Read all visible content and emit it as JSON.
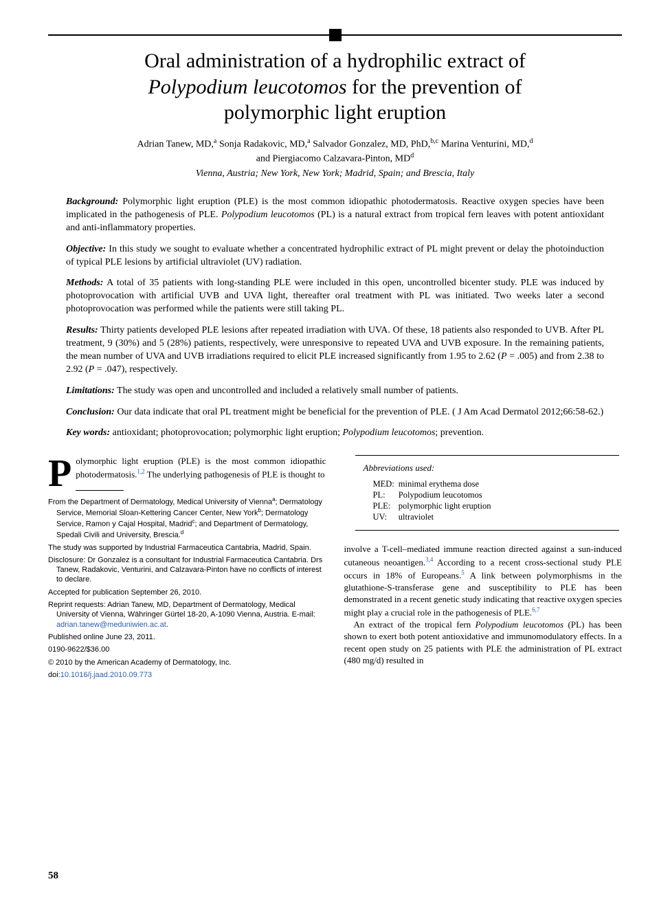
{
  "colors": {
    "text": "#000000",
    "bg": "#ffffff",
    "link": "#2a5db0",
    "rule": "#000000"
  },
  "title": {
    "line1": "Oral administration of a hydrophilic extract of",
    "line2_italic": "Polypodium leucotomos",
    "line2_rest": " for the prevention of",
    "line3": "polymorphic light eruption"
  },
  "authors": {
    "line1_a": "Adrian Tanew, MD,",
    "sup1": "a",
    "line1_b": " Sonja Radakovic, MD,",
    "sup2": "a",
    "line1_c": " Salvador Gonzalez, MD, PhD,",
    "sup3": "b,c",
    "line1_d": " Marina Venturini, MD,",
    "sup4": "d",
    "line2_a": "and Piergiacomo Calzavara-Pinton, MD",
    "sup5": "d"
  },
  "locations": "Vienna, Austria; New York, New York; Madrid, Spain; and Brescia, Italy",
  "abstract": {
    "background": {
      "label": "Background:",
      "pre": " Polymorphic light eruption (PLE) is the most common idiopathic photodermatosis. Reactive oxygen species have been implicated in the pathogenesis of PLE. ",
      "ital": "Polypodium leucotomos",
      "post": " (PL) is a natural extract from tropical fern leaves with potent antioxidant and anti-inflammatory properties."
    },
    "objective": {
      "label": "Objective:",
      "text": " In this study we sought to evaluate whether a concentrated hydrophilic extract of PL might prevent or delay the photoinduction of typical PLE lesions by artificial ultraviolet (UV) radiation."
    },
    "methods": {
      "label": "Methods:",
      "text": " A total of 35 patients with long-standing PLE were included in this open, uncontrolled bicenter study. PLE was induced by photoprovocation with artificial UVB and UVA light, thereafter oral treatment with PL was initiated. Two weeks later a second photoprovocation was performed while the patients were still taking PL."
    },
    "results": {
      "label": "Results:",
      "pre": " Thirty patients developed PLE lesions after repeated irradiation with UVA. Of these, 18 patients also responded to UVB. After PL treatment, 9 (30%) and 5 (28%) patients, respectively, were unresponsive to repeated UVA and UVB exposure. In the remaining patients, the mean number of UVA and UVB irradiations required to elicit PLE increased significantly from 1.95 to 2.62 (",
      "p1_ital": "P",
      "p1_rest": " = .005) and from 2.38 to 2.92 (",
      "p2_ital": "P",
      "p2_rest": " = .047), respectively."
    },
    "limitations": {
      "label": "Limitations:",
      "text": " The study was open and uncontrolled and included a relatively small number of patients."
    },
    "conclusion": {
      "label": "Conclusion:",
      "text": " Our data indicate that oral PL treatment might be beneficial for the prevention of PLE. ( J Am Acad Dermatol 2012;66:58-62.)"
    },
    "keywords": {
      "label": "Key words:",
      "pre": " antioxidant; photoprovocation; polymorphic light eruption; ",
      "ital": "Polypodium leucotomos",
      "post": "; prevention."
    }
  },
  "intro": {
    "dropcap": "P",
    "text_a": "olymorphic light eruption (PLE) is the most common idiopathic photodermatosis.",
    "ref1": "1,2",
    "text_b": " The underlying pathogenesis of PLE is thought to"
  },
  "footnotes": {
    "affil_a": "From the Department of Dermatology, Medical University of Vienna",
    "affil_a_sup": "a",
    "affil_b": "; Dermatology Service, Memorial Sloan-Kettering Cancer Center, New York",
    "affil_b_sup": "b",
    "affil_c": "; Dermatology Service, Ramon y Cajal Hospital, Madrid",
    "affil_c_sup": "c",
    "affil_d": "; and Department of Dermatology, Spedali Civili and University, Brescia.",
    "affil_d_sup": "d",
    "funding": "The study was supported by Industrial Farmaceutica Cantabria, Madrid, Spain.",
    "disclosure": "Disclosure: Dr Gonzalez is a consultant for Industrial Farmaceutica Cantabria. Drs Tanew, Radakovic, Venturini, and Calzavara-Pinton have no conflicts of interest to declare.",
    "accepted": "Accepted for publication September 26, 2010.",
    "reprint_a": "Reprint requests: Adrian Tanew, MD, Department of Dermatology, Medical University of Vienna, Währinger Gürtel 18-20, A-1090 Vienna, Austria. E-mail: ",
    "reprint_email": "adrian.tanew@meduniwien.ac.at",
    "reprint_b": ".",
    "published": "Published online June 23, 2011.",
    "issn": "0190-9622/$36.00",
    "copyright": "© 2010 by the American Academy of Dermatology, Inc.",
    "doi_label": "doi:",
    "doi": "10.1016/j.jaad.2010.09.773"
  },
  "abbreviations": {
    "title": "Abbreviations used:",
    "rows": [
      {
        "k": "MED:",
        "v": "minimal erythema dose"
      },
      {
        "k": "PL:",
        "v": "Polypodium leucotomos"
      },
      {
        "k": "PLE:",
        "v": "polymorphic light eruption"
      },
      {
        "k": "UV:",
        "v": "ultraviolet"
      }
    ]
  },
  "body_right": {
    "p1_a": "involve a T-cell–mediated immune reaction directed against a sun-induced cutaneous neoantigen.",
    "ref34": "3,4",
    "p1_b": " According to a recent cross-sectional study PLE occurs in 18% of Europeans.",
    "ref5": "5",
    "p1_c": " A link between polymorphisms in the glutathione-S-transferase gene and susceptibility to PLE has been demonstrated in a recent genetic study indicating that reactive oxygen species might play a crucial role in the pathogenesis of PLE.",
    "ref67": "6,7",
    "p2_a": "An extract of the tropical fern ",
    "p2_ital": "Polypodium leucotomos",
    "p2_b": " (PL) has been shown to exert both potent antioxidative and immunomodulatory effects. In a recent open study on 25 patients with PLE the administration of PL extract (480 mg/d) resulted in"
  },
  "page_number": "58"
}
